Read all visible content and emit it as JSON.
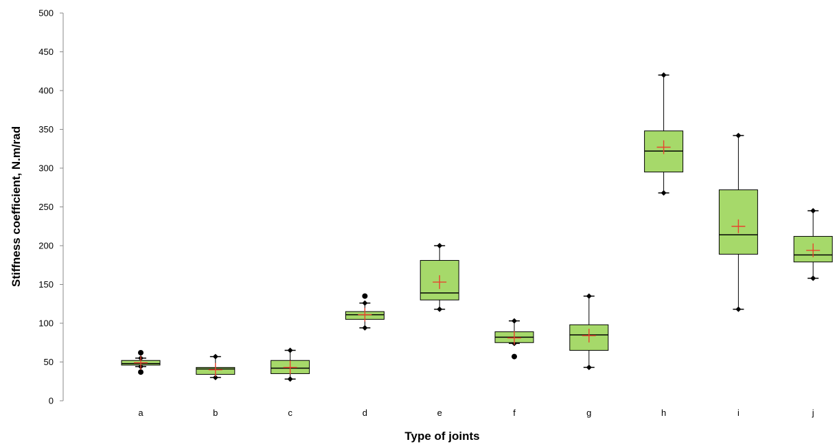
{
  "chart_data": {
    "type": "box",
    "title": "",
    "xlabel": "Type of joints",
    "ylabel": "Stiffness coefficient, N.m/rad",
    "ylim": [
      0,
      500
    ],
    "yticks": [
      0,
      50,
      100,
      150,
      200,
      250,
      300,
      350,
      400,
      450,
      500
    ],
    "grid": false,
    "legend": "none",
    "colors": {
      "box_fill": "#a6d96a",
      "mean_marker": "#e8432e",
      "whisker": "#000000"
    },
    "categories": [
      "a",
      "b",
      "c",
      "d",
      "e",
      "f",
      "g",
      "h",
      "i",
      "j"
    ],
    "boxes": [
      {
        "category": "a",
        "min": 44,
        "q1": 46,
        "median": 48,
        "q3": 52,
        "max": 55,
        "mean": 49,
        "outliers": [
          62,
          37
        ]
      },
      {
        "category": "b",
        "min": 30,
        "q1": 34,
        "median": 41,
        "q3": 43,
        "max": 57,
        "mean": 40,
        "outliers": []
      },
      {
        "category": "c",
        "min": 28,
        "q1": 35,
        "median": 42,
        "q3": 52,
        "max": 65,
        "mean": 43,
        "outliers": []
      },
      {
        "category": "d",
        "min": 94,
        "q1": 105,
        "median": 111,
        "q3": 115,
        "max": 126,
        "mean": 111,
        "outliers": [
          135
        ]
      },
      {
        "category": "e",
        "min": 118,
        "q1": 130,
        "median": 139,
        "q3": 181,
        "max": 200,
        "mean": 153,
        "outliers": []
      },
      {
        "category": "f",
        "min": 74,
        "q1": 75,
        "median": 82,
        "q3": 89,
        "max": 103,
        "mean": 81,
        "outliers": [
          57
        ]
      },
      {
        "category": "g",
        "min": 43,
        "q1": 65,
        "median": 85,
        "q3": 98,
        "max": 135,
        "mean": 84,
        "outliers": []
      },
      {
        "category": "h",
        "min": 268,
        "q1": 295,
        "median": 322,
        "q3": 348,
        "max": 420,
        "mean": 327,
        "outliers": []
      },
      {
        "category": "i",
        "min": 118,
        "q1": 189,
        "median": 214,
        "q3": 272,
        "max": 342,
        "mean": 225,
        "outliers": []
      },
      {
        "category": "j",
        "min": 158,
        "q1": 179,
        "median": 188,
        "q3": 212,
        "max": 245,
        "mean": 194,
        "outliers": []
      }
    ]
  }
}
